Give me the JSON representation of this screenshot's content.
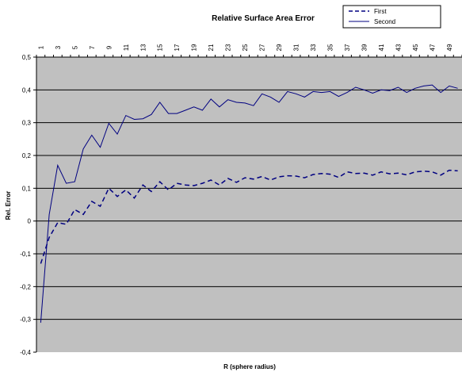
{
  "chart_data": {
    "type": "line",
    "title": "Relative Surface Area Error",
    "xlabel": "R (sphere radius)",
    "ylabel": "Rel. Error",
    "x": [
      1,
      2,
      3,
      4,
      5,
      6,
      7,
      8,
      9,
      10,
      11,
      12,
      13,
      14,
      15,
      16,
      17,
      18,
      19,
      20,
      21,
      22,
      23,
      24,
      25,
      26,
      27,
      28,
      29,
      30,
      31,
      32,
      33,
      34,
      35,
      36,
      37,
      38,
      39,
      40,
      41,
      42,
      43,
      44,
      45,
      46,
      47,
      48,
      49,
      50
    ],
    "x_tick_labels": [
      "1",
      "3",
      "5",
      "7",
      "9",
      "11",
      "13",
      "15",
      "17",
      "19",
      "21",
      "23",
      "25",
      "27",
      "29",
      "31",
      "33",
      "35",
      "37",
      "39",
      "41",
      "43",
      "45",
      "47",
      "49"
    ],
    "y_tick_labels": [
      "0,5",
      "0,4",
      "0,3",
      "0,2",
      "0,1",
      "0",
      "-0,1",
      "-0,2",
      "-0,3",
      "-0,4"
    ],
    "ylim": [
      -0.4,
      0.5
    ],
    "grid": true,
    "x_axis_position": "top",
    "legend_position": "top-right",
    "colors": {
      "plot_background": "#c0c0c0",
      "series": "#000080",
      "gridline": "#000000"
    },
    "series": [
      {
        "name": "First",
        "style": "dashed",
        "values": [
          -0.13,
          -0.05,
          -0.005,
          -0.01,
          0.035,
          0.02,
          0.06,
          0.045,
          0.1,
          0.075,
          0.095,
          0.07,
          0.11,
          0.09,
          0.12,
          0.095,
          0.115,
          0.11,
          0.108,
          0.115,
          0.125,
          0.11,
          0.13,
          0.118,
          0.132,
          0.128,
          0.136,
          0.125,
          0.135,
          0.138,
          0.137,
          0.132,
          0.142,
          0.145,
          0.143,
          0.133,
          0.15,
          0.145,
          0.146,
          0.14,
          0.15,
          0.144,
          0.146,
          0.141,
          0.15,
          0.152,
          0.15,
          0.14,
          0.155,
          0.153
        ]
      },
      {
        "name": "Second",
        "style": "solid",
        "values": [
          -0.31,
          0.02,
          0.17,
          0.115,
          0.12,
          0.22,
          0.262,
          0.225,
          0.298,
          0.265,
          0.322,
          0.31,
          0.312,
          0.325,
          0.362,
          0.328,
          0.328,
          0.338,
          0.348,
          0.338,
          0.372,
          0.348,
          0.37,
          0.362,
          0.36,
          0.352,
          0.388,
          0.378,
          0.362,
          0.395,
          0.388,
          0.378,
          0.395,
          0.392,
          0.395,
          0.38,
          0.392,
          0.408,
          0.4,
          0.39,
          0.4,
          0.398,
          0.408,
          0.392,
          0.405,
          0.412,
          0.415,
          0.392,
          0.412,
          0.405
        ]
      }
    ]
  }
}
